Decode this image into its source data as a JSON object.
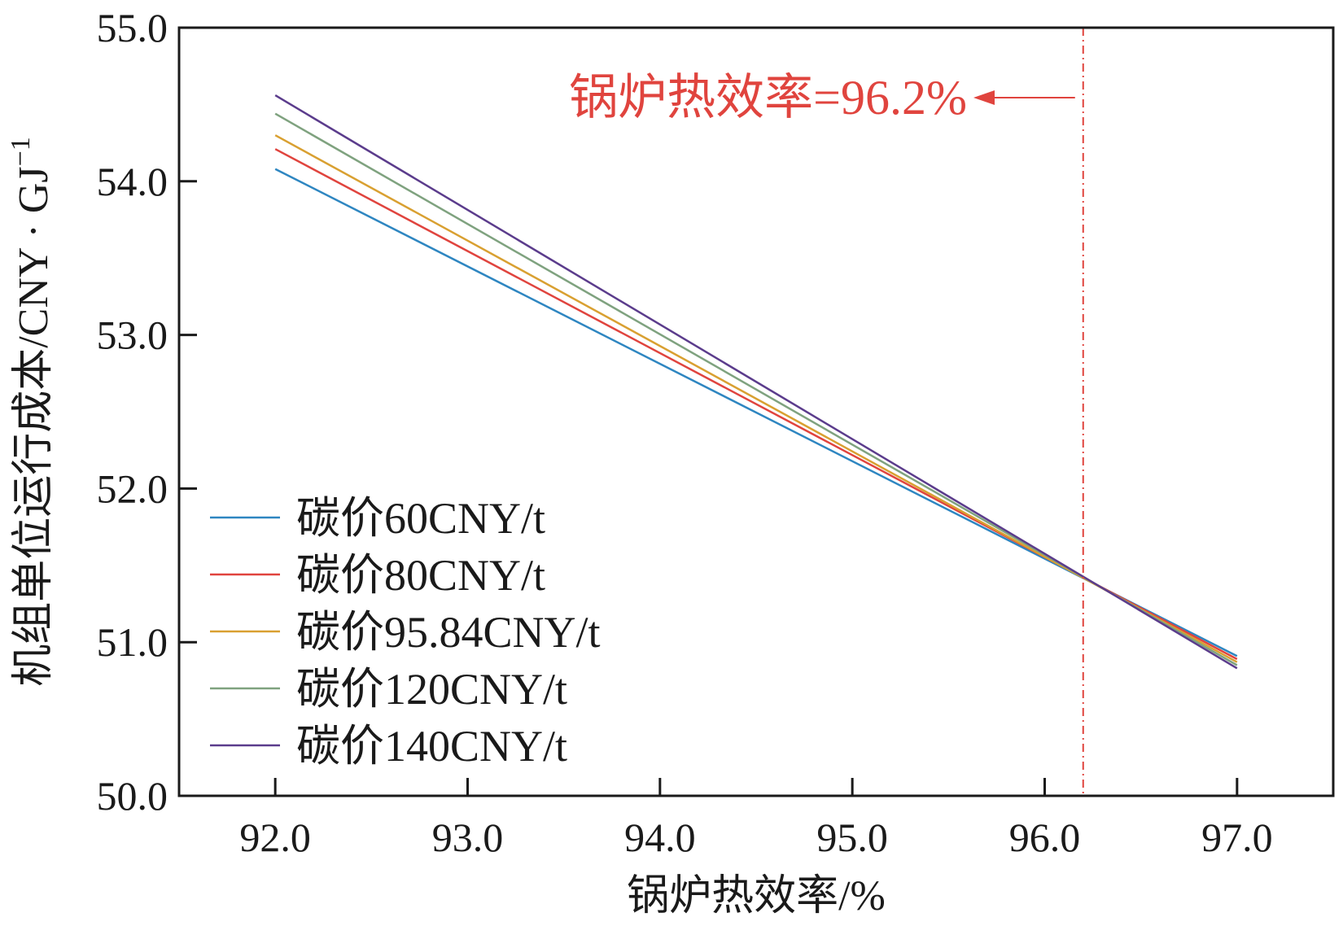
{
  "chart_data": {
    "type": "line",
    "xlabel": "锅炉热效率/%",
    "ylabel": "机组单位运行成本/CNY · GJ",
    "ylabel_sup": "−1",
    "xlim": [
      91.5,
      97.5
    ],
    "ylim": [
      50.0,
      55.0
    ],
    "xticks": [
      92.0,
      93.0,
      94.0,
      95.0,
      96.0,
      97.0
    ],
    "xtick_labels": [
      "92.0",
      "93.0",
      "94.0",
      "95.0",
      "96.0",
      "97.0"
    ],
    "yticks": [
      50.0,
      51.0,
      52.0,
      53.0,
      54.0,
      55.0
    ],
    "ytick_labels": [
      "50.0",
      "51.0",
      "52.0",
      "53.0",
      "54.0",
      "55.0"
    ],
    "grid": false,
    "legend_position": "lower-left",
    "x": [
      92.0,
      97.0
    ],
    "series": [
      {
        "name": "碳价60CNY/t",
        "color": "#2e86c1",
        "values": [
          54.08,
          50.91
        ]
      },
      {
        "name": "碳价80CNY/t",
        "color": "#e0443e",
        "values": [
          54.21,
          50.89
        ]
      },
      {
        "name": "碳价95.84CNY/t",
        "color": "#d9a031",
        "values": [
          54.3,
          50.87
        ]
      },
      {
        "name": "碳价120CNY/t",
        "color": "#7fa27f",
        "values": [
          54.44,
          50.85
        ]
      },
      {
        "name": "碳价140CNY/t",
        "color": "#5b3c8c",
        "values": [
          54.56,
          50.83
        ]
      }
    ],
    "annotation": {
      "text": "锅炉热效率=96.2%",
      "x": 96.2,
      "color": "#e0443e"
    }
  }
}
